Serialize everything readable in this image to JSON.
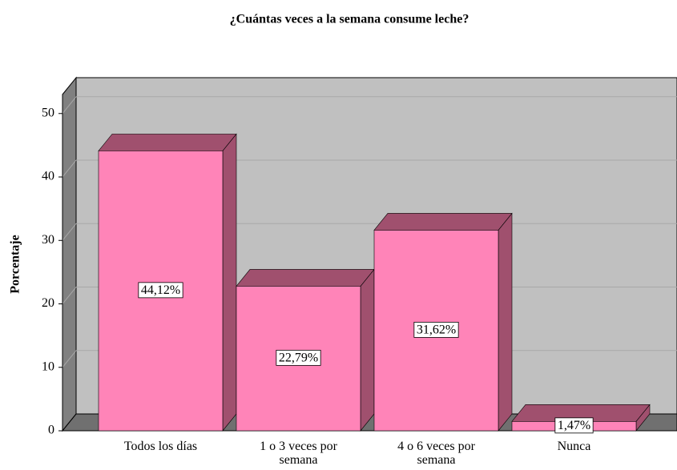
{
  "chart_data": {
    "type": "bar3d",
    "title": "¿Cuántas veces a la semana consume leche?",
    "y_label": "Porcentaje",
    "categories": [
      "Todos los días",
      "1 o 3 veces por semana",
      "4 o 6 veces por semana",
      "Nunca"
    ],
    "values": [
      44.12,
      22.79,
      31.62,
      1.47
    ],
    "value_labels": [
      "44,12%",
      "22,79%",
      "31,62%",
      "1,47%"
    ],
    "color": "#ff84b8",
    "shade_color": "#a0506e",
    "ylim": [
      0,
      53
    ],
    "yticks": [
      0,
      10,
      20,
      30,
      40,
      50
    ],
    "grid": true
  }
}
